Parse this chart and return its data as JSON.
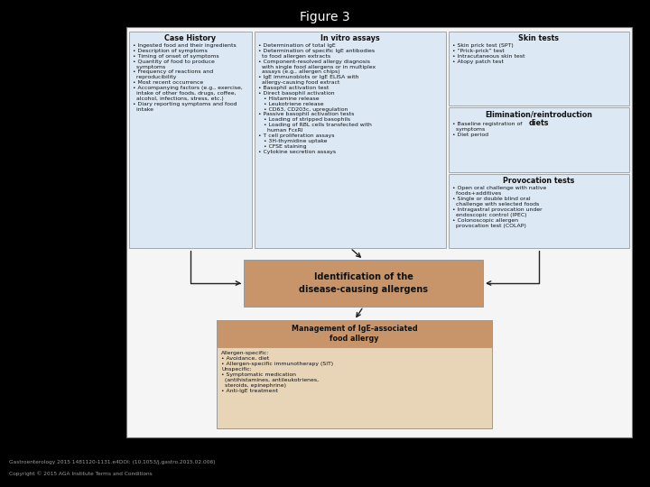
{
  "title": "Figure 3",
  "fig_bg": "#000000",
  "outer_bg": "#ffffff",
  "box_bg_blue": "#dce9f5",
  "box_bg_tan_light": "#e8d5b7",
  "box_bg_tan_dark": "#c8956a",
  "box_border": "#999999",
  "text_color": "#111111",
  "title_color": "#ffffff",
  "footer_color": "#999999",
  "case_history_title": "Case History",
  "case_history_lines": [
    "• Ingested food and their ingredients",
    "• Description of symptoms",
    "• Timing of onset of symptoms",
    "• Quantity of food to produce\n  symptoms",
    "• Frequency of reactions and\n  reproducibility",
    "• Most recent occurrence",
    "• Accompanying factors (e.g., exercise,\n  intake of other foods, drugs, coffee,\n  alcohol, infections, stress, etc.)",
    "• Diary reporting symptoms and food\n  intake"
  ],
  "in_vitro_title": "In vitro assays",
  "in_vitro_lines": [
    "• Determination of total IgE",
    "• Determination of specific IgE antibodies\n  to food allergen extracts",
    "• Component-resolved allergy diagnosis\n  with single food allergens or in multiplex\n  assays (e.g., allergen chips)",
    "• IgE immunoblots or IgE ELISA with\n  allergy-causing food extract",
    "• Basophil activation test",
    "• Direct basophil activation",
    "   • Histamine release",
    "   • Leukotriene release",
    "   • CD63, CD203c, upregulation",
    "• Passive basophil activation tests",
    "   • Loading of stripped basophils",
    "   • Loading of RBL cells transfected with\n     human FcεRI",
    "• T cell proliferation assays",
    "   • 3H-thymidine uptake",
    "   • CFSE staining",
    "• Cytokine secretion assays"
  ],
  "skin_tests_title": "Skin tests",
  "skin_tests_lines": [
    "• Skin prick test (SPT)",
    "• “Prick-prick” test",
    "• Intracutaneous skin test",
    "• Atopy patch test"
  ],
  "elim_title": "Elimination/reintroduction\ndiets",
  "elim_lines": [
    "• Baseline registration of\n  symptoms",
    "• Diet period"
  ],
  "prov_title": "Provocation tests",
  "prov_lines": [
    "• Open oral challenge with native\n  foods+additives",
    "• Single or double blind oral\n  challenge with selected foods",
    "• Intragastral provocation under\n  endoscopic control (IPEC)",
    "• Colonoscopic allergen\n  provocation test (COLAP)"
  ],
  "identification_title": "Identification of the\ndisease-causing allergens",
  "management_title": "Management of IgE-associated\nfood allergy",
  "management_lines": [
    "Allergen-specific:",
    "• Avoidance, diet",
    "• Allergen-specific immunotherapy (SIT)",
    "Unspecific:",
    "• Symptomatic medication\n  (antihistamines, antileukotrienes,\n  steroids, epinephrine)",
    "• Anti-IgE treatment"
  ],
  "footer_line1": "Gastroenterology 2015 1481120-1131.e4DOI: (10.1053/j.gastro.2015.02.006)",
  "footer_line2": "Copyright © 2015 AGA Institute Terms and Conditions"
}
